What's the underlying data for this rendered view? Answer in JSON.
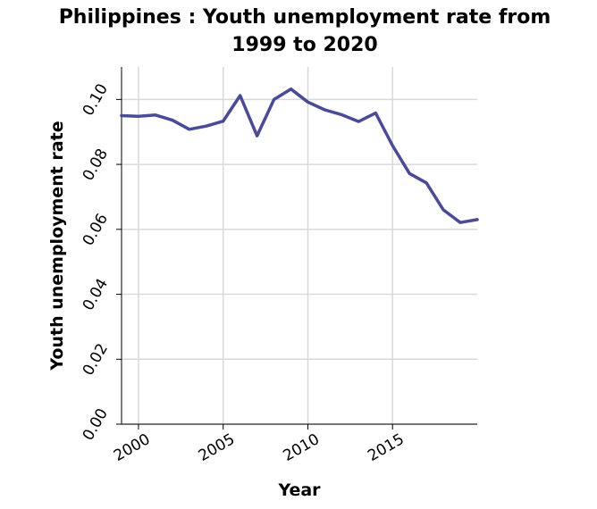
{
  "chart_data": {
    "type": "line",
    "title_line1": "Philippines : Youth unemployment rate from",
    "title_line2": "1999 to 2020",
    "xlabel": "Year",
    "ylabel": "Youth unemployment rate",
    "xlim": [
      1999,
      2020
    ],
    "ylim": [
      0,
      0.11
    ],
    "x_ticks": [
      2000,
      2005,
      2010,
      2015
    ],
    "x_tick_labels": [
      "2000",
      "2005",
      "2010",
      "2015"
    ],
    "y_ticks": [
      0,
      0.02,
      0.04,
      0.06,
      0.08,
      0.1
    ],
    "y_tick_labels": [
      "0.00",
      "0.02",
      "0.04",
      "0.06",
      "0.08",
      "0.10"
    ],
    "grid": true,
    "series_color": "#4a4a9a",
    "grid_color": "#d9d9d9",
    "series": [
      {
        "x": [
          1999,
          2000,
          2001,
          2002,
          2003,
          2004,
          2005,
          2006,
          2007,
          2008,
          2009,
          2010,
          2011,
          2012,
          2013,
          2014,
          2015,
          2016,
          2017,
          2018,
          2019,
          2020
        ],
        "values": [
          0.095,
          0.0948,
          0.0952,
          0.0936,
          0.0908,
          0.0918,
          0.0933,
          0.1012,
          0.0888,
          0.1,
          0.1032,
          0.0992,
          0.0968,
          0.0953,
          0.0932,
          0.0958,
          0.0858,
          0.0772,
          0.0743,
          0.066,
          0.0621,
          0.063
        ]
      }
    ]
  }
}
